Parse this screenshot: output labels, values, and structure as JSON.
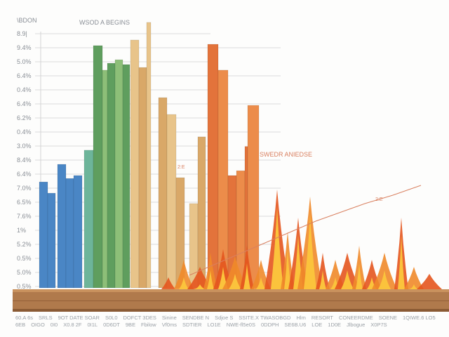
{
  "chart_data": {
    "type": "bar",
    "title": "WSOD A BEGINS",
    "ylabel": "\\BDON",
    "ylim": [
      0,
      100
    ],
    "y_ticks": [
      "8.9|",
      "9.4%",
      "5.0%",
      "6.4%",
      "0.4%",
      "6.4%",
      "6.2%",
      "0.4%",
      "3.0%",
      "8.4%",
      "6.4%",
      "7.0%",
      "6.5%",
      "7.6%",
      "1%",
      "5.2%",
      "0.5%",
      "5.0%",
      "0.5%"
    ],
    "grid": true,
    "annotations": [
      "SWEDR ANIEDSE",
      "2:E",
      "2:E"
    ],
    "categories_row1": [
      "60.A 6s",
      "SRLS",
      "9OT DATE SOAR",
      "S0L0",
      "DOFCT 3DES",
      "Sinine",
      "SENDBE N",
      "Sdjoe S",
      "SSITE.X TWASOBGD",
      "Hlm",
      "RESORT",
      "CONEERDME",
      "SOENE",
      "1QIWE.6 LO5"
    ],
    "categories_row2": [
      "6EB",
      "OIGO",
      "0I0",
      "X0.8 2F",
      "0I1L",
      "0D6DT",
      "9BE",
      "Fbilow",
      "Vf0ms",
      "SDTIER",
      "LO1E",
      "NWE-fl5e0S",
      "0DDPH",
      "SE6B.U6",
      "LOE",
      "1D0E",
      "Jlbogue",
      "X0P7S"
    ],
    "series": [
      {
        "name": "blue",
        "color": "#4a86c5",
        "values": [
          39.7,
          35.5,
          46.3,
          41.0,
          42.1
        ]
      },
      {
        "name": "teal",
        "color": "#6db59a",
        "values": [
          51.6
        ]
      },
      {
        "name": "green",
        "color": "#5f9e5e",
        "values": [
          90.8,
          81.6,
          84.2,
          85.5,
          83.7
        ]
      },
      {
        "name": "tan",
        "color": "#e8c48a",
        "values": [
          92.9,
          82.6,
          99.5,
          71.3,
          65.0,
          41.3,
          31.6,
          56.6
        ]
      },
      {
        "name": "orange",
        "color": "#e3733b",
        "values": [
          91.3,
          81.6,
          42.1,
          43.9,
          53.0,
          68.4
        ]
      }
    ],
    "trend_line": {
      "x": [
        0,
        1
      ],
      "y": [
        5,
        38
      ]
    }
  }
}
